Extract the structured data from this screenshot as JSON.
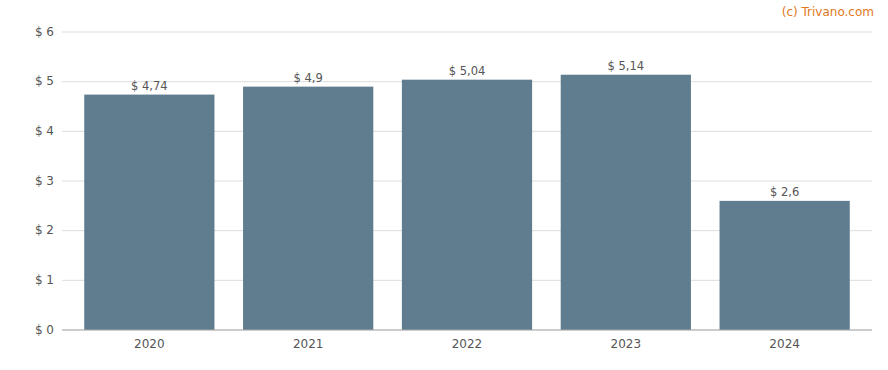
{
  "chart_data": {
    "type": "bar",
    "categories": [
      "2020",
      "2021",
      "2022",
      "2023",
      "2024"
    ],
    "values": [
      4.74,
      4.9,
      5.04,
      5.14,
      2.6
    ],
    "value_labels": [
      "$ 4,74",
      "$ 4,9",
      "$ 5,04",
      "$ 5,14",
      "$ 2,6"
    ],
    "data_labels": true,
    "color": "#607d8f",
    "ylim": [
      0,
      6
    ],
    "yticks": [
      {
        "value": 0,
        "label": "$ 0"
      },
      {
        "value": 1,
        "label": "$ 1"
      },
      {
        "value": 2,
        "label": "$ 2"
      },
      {
        "value": 3,
        "label": "$ 3"
      },
      {
        "value": 4,
        "label": "$ 4"
      },
      {
        "value": 5,
        "label": "$ 5"
      },
      {
        "value": 6,
        "label": "$ 6"
      }
    ],
    "grid": true,
    "annotations": [
      "(c) Trivano.com"
    ]
  }
}
